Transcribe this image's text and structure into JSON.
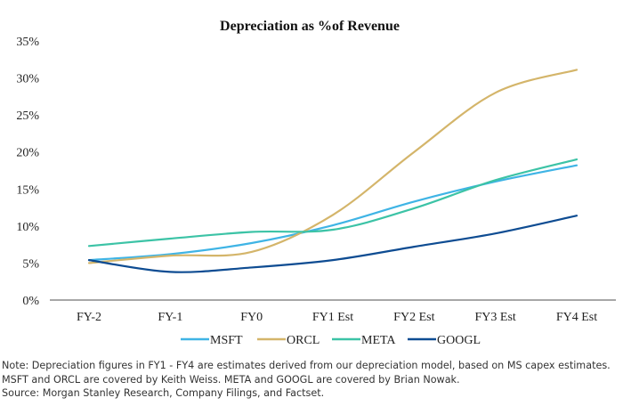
{
  "chart_data": {
    "type": "line",
    "title": "Depreciation as %of Revenue",
    "xlabel": "",
    "ylabel": "",
    "categories": [
      "FY-2",
      "FY-1",
      "FY0",
      "FY1 Est",
      "FY2 Est",
      "FY3 Est",
      "FY4 Est"
    ],
    "yticks": [
      "0%",
      "5%",
      "10%",
      "15%",
      "20%",
      "25%",
      "30%",
      "35%"
    ],
    "ylim": [
      0,
      35
    ],
    "grid": false,
    "legend_position": "bottom",
    "series": [
      {
        "name": "MSFT",
        "color": "#3FB4E5",
        "values": [
          5.4,
          6.2,
          7.7,
          10.1,
          13.3,
          16.0,
          18.2
        ]
      },
      {
        "name": "ORCL",
        "color": "#D4B56A",
        "values": [
          5.0,
          6.0,
          6.5,
          11.5,
          20.0,
          28.0,
          31.1
        ]
      },
      {
        "name": "META",
        "color": "#3CC3A6",
        "values": [
          7.3,
          8.3,
          9.2,
          9.5,
          12.4,
          16.2,
          19.0
        ]
      },
      {
        "name": "GOOGL",
        "color": "#0E4C92",
        "values": [
          5.4,
          3.8,
          4.4,
          5.4,
          7.2,
          9.0,
          11.4
        ]
      }
    ]
  },
  "notes": {
    "line1": "Note: Depreciation figures in FY1 - FY4 are estimates derived from our depreciation model, based on MS capex estimates.",
    "line2": "MSFT and ORCL are covered by Keith Weiss. META and GOOGL are covered by Brian Nowak.",
    "line3": "Source: Morgan Stanley Research, Company Filings, and Factset."
  }
}
